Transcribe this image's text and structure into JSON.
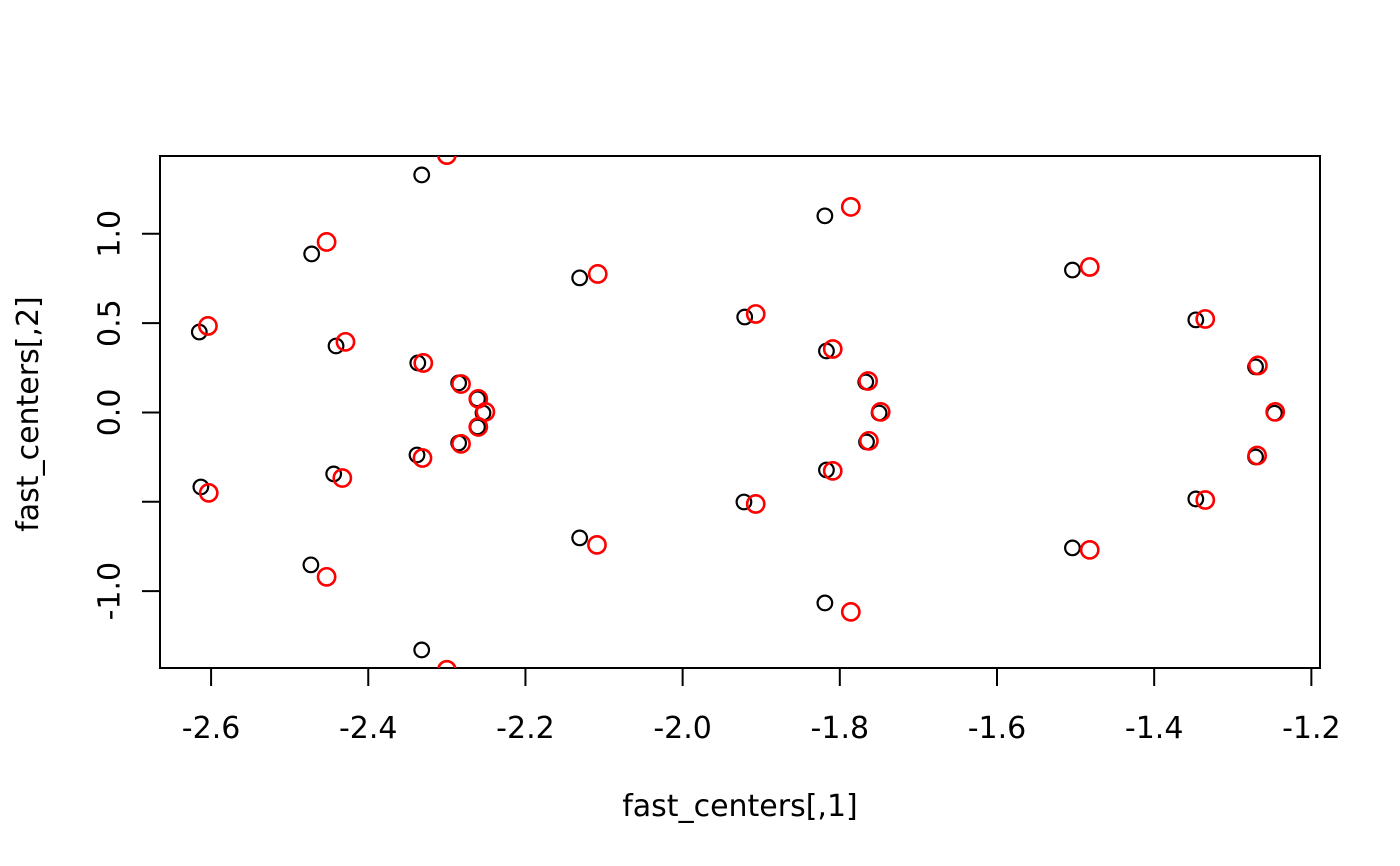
{
  "chart_data": {
    "type": "scatter",
    "title": "",
    "xlabel": "fast_centers[,1]",
    "ylabel": "fast_centers[,2]",
    "xlim": [
      -2.665,
      -1.189
    ],
    "ylim": [
      -1.43,
      1.435
    ],
    "grid": false,
    "legend": null,
    "background": "#ffffff",
    "x_ticks": [
      {
        "v": -2.6,
        "label": "-2.6"
      },
      {
        "v": -2.4,
        "label": "-2.4"
      },
      {
        "v": -2.2,
        "label": "-2.2"
      },
      {
        "v": -2.0,
        "label": "-2.0"
      },
      {
        "v": -1.8,
        "label": "-1.8"
      },
      {
        "v": -1.6,
        "label": "-1.6"
      },
      {
        "v": -1.4,
        "label": "-1.4"
      },
      {
        "v": -1.2,
        "label": "-1.2"
      }
    ],
    "y_ticks": [
      {
        "v": 1.0,
        "label": "1.0"
      },
      {
        "v": 0.5,
        "label": "0.5"
      },
      {
        "v": 0.0,
        "label": "0.0"
      },
      {
        "v": -0.5,
        "label": ""
      },
      {
        "v": -1.0,
        "label": "-1.0"
      }
    ],
    "series": [
      {
        "name": "fast_centers_black",
        "marker": "open-circle",
        "color": "#000000",
        "radius": 7.3,
        "stroke_width": 2.2,
        "points": [
          [
            -2.615,
            0.45
          ],
          [
            -2.613,
            -0.417
          ],
          [
            -2.472,
            0.887
          ],
          [
            -2.441,
            0.372
          ],
          [
            -2.444,
            -0.344
          ],
          [
            -2.473,
            -0.853
          ],
          [
            -2.332,
            1.329
          ],
          [
            -2.337,
            0.277
          ],
          [
            -2.285,
            0.165
          ],
          [
            -2.261,
            0.076
          ],
          [
            -2.254,
            -0.003
          ],
          [
            -2.261,
            -0.081
          ],
          [
            -2.285,
            -0.171
          ],
          [
            -2.338,
            -0.238
          ],
          [
            -2.332,
            -1.329
          ],
          [
            -2.131,
            0.753
          ],
          [
            -2.131,
            -0.702
          ],
          [
            -1.921,
            0.534
          ],
          [
            -1.922,
            -0.501
          ],
          [
            -1.819,
            1.1
          ],
          [
            -1.817,
            0.344
          ],
          [
            -1.767,
            0.171
          ],
          [
            -1.75,
            -0.003
          ],
          [
            -1.766,
            -0.165
          ],
          [
            -1.817,
            -0.322
          ],
          [
            -1.819,
            -1.066
          ],
          [
            -1.504,
            0.797
          ],
          [
            -1.504,
            -0.758
          ],
          [
            -1.347,
            0.518
          ],
          [
            -1.271,
            0.255
          ],
          [
            -1.247,
            -0.004
          ],
          [
            -1.271,
            -0.249
          ],
          [
            -1.347,
            -0.484
          ]
        ]
      },
      {
        "name": "fast_centers_red",
        "marker": "open-circle",
        "color": "#FF0000",
        "radius": 8.6,
        "stroke_width": 2.6,
        "points": [
          [
            -2.604,
            0.484
          ],
          [
            -2.603,
            -0.45
          ],
          [
            -2.453,
            0.954
          ],
          [
            -2.429,
            0.395
          ],
          [
            -2.433,
            -0.367
          ],
          [
            -2.453,
            -0.92
          ],
          [
            -2.3,
            1.44
          ],
          [
            -2.33,
            0.277
          ],
          [
            -2.282,
            0.159
          ],
          [
            -2.26,
            0.076
          ],
          [
            -2.251,
            0.003
          ],
          [
            -2.26,
            -0.081
          ],
          [
            -2.282,
            -0.176
          ],
          [
            -2.331,
            -0.255
          ],
          [
            -2.3,
            -1.44
          ],
          [
            -2.108,
            0.775
          ],
          [
            -2.109,
            -0.741
          ],
          [
            -1.907,
            0.551
          ],
          [
            -1.907,
            -0.512
          ],
          [
            -1.786,
            1.15
          ],
          [
            -1.809,
            0.355
          ],
          [
            -1.764,
            0.176
          ],
          [
            -1.748,
            0.003
          ],
          [
            -1.763,
            -0.159
          ],
          [
            -1.809,
            -0.327
          ],
          [
            -1.786,
            -1.116
          ],
          [
            -1.482,
            0.814
          ],
          [
            -1.482,
            -0.769
          ],
          [
            -1.335,
            0.523
          ],
          [
            -1.268,
            0.263
          ],
          [
            -1.246,
            0.003
          ],
          [
            -1.269,
            -0.241
          ],
          [
            -1.335,
            -0.49
          ]
        ]
      }
    ]
  }
}
